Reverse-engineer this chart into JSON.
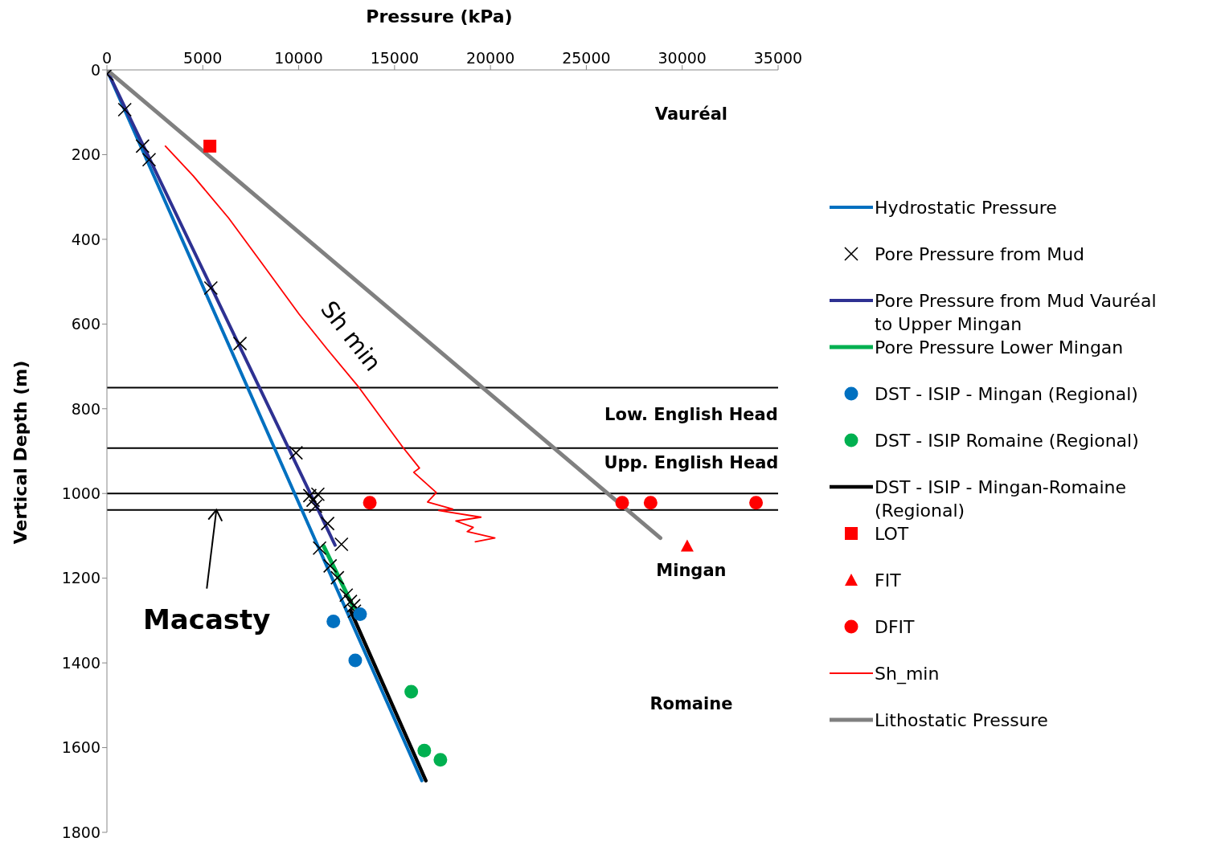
{
  "chart_data": {
    "type": "line",
    "xlabel": "Pressure (kPa)",
    "ylabel": "Vertical Depth (m)",
    "xlim": [
      0,
      35000
    ],
    "xticks": [
      0,
      5000,
      10000,
      15000,
      20000,
      25000,
      30000,
      35000
    ],
    "ylim": [
      1800,
      0
    ],
    "yticks": [
      0,
      200,
      400,
      600,
      800,
      1000,
      1200,
      1400,
      1600,
      1800
    ],
    "grid": false,
    "legend": "right",
    "series": [
      {
        "name": "Hydrostatic Pressure",
        "color": "#0070c0",
        "x": [
          0,
          16420
        ],
        "values": [
          0,
          1678
        ]
      },
      {
        "name": "Pore Pressure from Mud",
        "type": "scatter",
        "marker": "cross",
        "color": "#000000",
        "x": [
          0,
          930,
          1860,
          2200,
          5420,
          6940,
          9860,
          10580,
          11000,
          10750,
          10880,
          11510,
          12230,
          11090,
          11640,
          12020,
          12480,
          12700,
          12870,
          12910
        ],
        "values": [
          10,
          94,
          180,
          212,
          515,
          646,
          904,
          1005,
          1002,
          1016,
          1030,
          1071,
          1120,
          1129,
          1171,
          1199,
          1240,
          1255,
          1265,
          1278
        ]
      },
      {
        "name": "Pore Pressure from Mud Vauréal to Upper Mingan",
        "color": "#2e3192",
        "x": [
          0,
          11900
        ],
        "values": [
          0,
          1122
        ]
      },
      {
        "name": "Pore Pressure Lower Mingan",
        "color": "#00b050",
        "x": [
          11300,
          12870
        ],
        "values": [
          1124,
          1270
        ]
      },
      {
        "name": "DST - ISIP - Mingan (Regional)",
        "type": "scatter",
        "marker": "circle",
        "color": "#0070c0",
        "x": [
          11810,
          13200,
          12950
        ],
        "values": [
          1302,
          1285,
          1394
        ]
      },
      {
        "name": "DST - ISIP Romaine (Regional)",
        "type": "scatter",
        "marker": "circle",
        "color": "#00b050",
        "x": [
          15870,
          16550,
          17390
        ],
        "values": [
          1468,
          1607,
          1629
        ]
      },
      {
        "name": "DST - ISIP - Mingan-Romaine (Regional)",
        "color": "#000000",
        "x": [
          12700,
          16630
        ],
        "values": [
          1276,
          1678
        ]
      },
      {
        "name": "LOT",
        "type": "scatter",
        "marker": "square",
        "color": "#ff0000",
        "x": [
          5370
        ],
        "values": [
          180
        ]
      },
      {
        "name": "FIT",
        "type": "scatter",
        "marker": "triangle",
        "color": "#ff0000",
        "x": [
          30260
        ],
        "values": [
          1124
        ]
      },
      {
        "name": "DFIT",
        "type": "scatter",
        "marker": "circle",
        "color": "#ff0000",
        "x": [
          13710,
          26870,
          28350,
          33850
        ],
        "values": [
          1022,
          1022,
          1022,
          1022
        ]
      },
      {
        "name": "Sh_min",
        "color": "#ff0000",
        "x": [
          3050,
          4500,
          6350,
          7830,
          10030,
          11500,
          13080,
          14200,
          15400,
          16300,
          16000,
          17180,
          16720,
          18030,
          17300,
          19500,
          18200,
          19100,
          18790,
          20230,
          19210
        ],
        "values": [
          180,
          250,
          350,
          441,
          577,
          660,
          746,
          815,
          889,
          940,
          950,
          998,
          1020,
          1037,
          1040,
          1056,
          1065,
          1080,
          1090,
          1105,
          1114
        ]
      },
      {
        "name": "Lithostatic Pressure",
        "color": "#808080",
        "x": [
          0,
          28860
        ],
        "values": [
          0,
          1105
        ]
      }
    ],
    "ref_lines": [
      {
        "axis": "y",
        "value": 750,
        "color": "#000000"
      },
      {
        "axis": "y",
        "value": 893,
        "color": "#000000"
      },
      {
        "axis": "y",
        "value": 1000,
        "color": "#000000"
      },
      {
        "axis": "y",
        "value": 1039,
        "color": "#000000"
      }
    ],
    "annotations": [
      "Vauréal",
      "Low. English Head",
      "Upp. English Head",
      "Mingan",
      "Romaine",
      {
        "text": "Macasty",
        "x": 5710,
        "y": 1035
      },
      "Sh min"
    ]
  }
}
